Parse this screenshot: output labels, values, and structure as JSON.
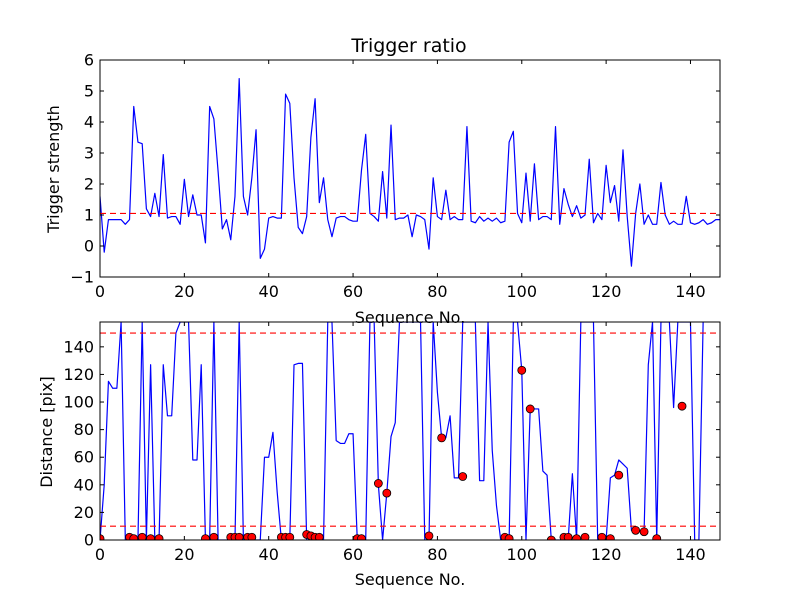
{
  "chart_data": [
    {
      "type": "line",
      "title": "Trigger ratio",
      "xlabel": "Sequence No.",
      "ylabel": "Trigger strength",
      "xlim": [
        0,
        147
      ],
      "ylim": [
        -1,
        6
      ],
      "xticks": [
        "0",
        "20",
        "40",
        "60",
        "80",
        "100",
        "120",
        "140"
      ],
      "yticks": [
        "−1",
        "0",
        "1",
        "2",
        "3",
        "4",
        "5",
        "6"
      ],
      "grid": false,
      "line_color": "#0000ff",
      "threshold_color": "#ff0000",
      "thresholds": [
        1.05
      ],
      "series": [
        {
          "values": [
            1.6,
            -0.2,
            0.85,
            0.85,
            0.85,
            0.85,
            0.7,
            0.85,
            4.5,
            3.35,
            3.3,
            1.2,
            0.95,
            1.7,
            0.95,
            2.95,
            0.9,
            0.95,
            0.95,
            0.7,
            2.15,
            0.95,
            1.65,
            1.0,
            1.0,
            0.1,
            4.5,
            4.1,
            2.4,
            0.55,
            0.85,
            0.2,
            1.6,
            5.4,
            1.6,
            1.0,
            2.2,
            3.75,
            -0.4,
            -0.1,
            0.9,
            0.95,
            0.9,
            0.9,
            4.9,
            4.6,
            2.2,
            0.6,
            0.4,
            0.95,
            3.5,
            4.75,
            1.4,
            2.2,
            0.85,
            0.3,
            0.9,
            0.95,
            0.95,
            0.85,
            0.8,
            0.8,
            2.45,
            3.6,
            1.05,
            0.95,
            0.8,
            2.4,
            0.9,
            3.9,
            0.85,
            0.9,
            0.9,
            1.0,
            0.3,
            1.0,
            0.95,
            0.85,
            -0.1,
            2.2,
            0.95,
            0.85,
            1.8,
            0.85,
            0.95,
            0.85,
            0.85,
            3.85,
            0.8,
            0.75,
            0.95,
            0.8,
            0.9,
            0.8,
            0.9,
            0.75,
            0.8,
            3.35,
            3.7,
            1.05,
            0.75,
            2.35,
            0.8,
            2.65,
            0.85,
            0.95,
            0.95,
            0.85,
            3.85,
            0.7,
            1.85,
            1.35,
            0.95,
            1.3,
            0.9,
            1.0,
            2.8,
            0.75,
            1.05,
            0.85,
            2.6,
            1.4,
            1.95,
            0.8,
            3.1,
            0.95,
            -0.65,
            1.05,
            2.0,
            0.7,
            1.0,
            0.7,
            0.7,
            2.05,
            1.0,
            0.7,
            0.8,
            0.7,
            0.7,
            1.6,
            0.75,
            0.7,
            0.75,
            0.85,
            0.7,
            0.75,
            0.85,
            0.85,
            0.75
          ]
        }
      ]
    },
    {
      "type": "line",
      "xlabel": "Sequence No.",
      "ylabel": "Distance [pix]",
      "xlim": [
        0,
        147
      ],
      "ylim": [
        0,
        158
      ],
      "xticks": [
        "0",
        "20",
        "40",
        "60",
        "80",
        "100",
        "120",
        "140"
      ],
      "yticks": [
        "0",
        "20",
        "40",
        "60",
        "80",
        "100",
        "120",
        "140"
      ],
      "grid": false,
      "line_color": "#0000ff",
      "marker_color": "#ff0000",
      "threshold_color": "#ff0000",
      "thresholds": [
        10,
        150
      ],
      "series": [
        {
          "values": [
            0,
            40,
            115,
            110,
            110,
            158,
            0,
            0,
            0,
            0,
            158,
            0,
            127,
            0,
            0,
            127,
            90,
            90,
            150,
            158,
            158,
            158,
            58,
            58,
            127,
            0,
            0,
            158,
            0,
            0,
            0,
            0,
            0,
            158,
            0,
            0,
            0,
            0,
            0,
            60,
            60,
            78,
            35,
            0,
            0,
            0,
            127,
            128,
            128,
            0,
            0,
            0,
            0,
            0,
            158,
            158,
            72,
            70,
            70,
            77,
            77,
            0,
            0,
            0,
            158,
            158,
            40,
            0,
            34,
            75,
            85,
            158,
            158,
            158,
            158,
            158,
            158,
            0,
            0,
            158,
            107,
            74,
            74,
            90,
            45,
            45,
            158,
            158,
            158,
            158,
            43,
            43,
            158,
            65,
            25,
            0,
            0,
            0,
            158,
            158,
            123,
            0,
            95,
            95,
            95,
            50,
            47,
            0,
            0,
            0,
            0,
            0,
            48,
            0,
            158,
            158,
            158,
            158,
            0,
            0,
            0,
            45,
            47,
            58,
            55,
            52,
            7,
            7,
            6,
            6,
            127,
            158,
            0,
            158,
            158,
            158,
            96,
            158,
            158,
            158,
            158,
            0,
            0,
            158
          ]
        }
      ],
      "markers": [
        {
          "x": 0,
          "y": 1
        },
        {
          "x": 7,
          "y": 2
        },
        {
          "x": 8,
          "y": 1
        },
        {
          "x": 10,
          "y": 2
        },
        {
          "x": 12,
          "y": 1
        },
        {
          "x": 14,
          "y": 1
        },
        {
          "x": 25,
          "y": 1
        },
        {
          "x": 27,
          "y": 2
        },
        {
          "x": 31,
          "y": 2
        },
        {
          "x": 32,
          "y": 2
        },
        {
          "x": 33,
          "y": 2
        },
        {
          "x": 35,
          "y": 2
        },
        {
          "x": 36,
          "y": 2
        },
        {
          "x": 43,
          "y": 2
        },
        {
          "x": 44,
          "y": 2
        },
        {
          "x": 45,
          "y": 2
        },
        {
          "x": 49,
          "y": 4
        },
        {
          "x": 50,
          "y": 3
        },
        {
          "x": 51,
          "y": 2
        },
        {
          "x": 52,
          "y": 2
        },
        {
          "x": 61,
          "y": 1
        },
        {
          "x": 62,
          "y": 1
        },
        {
          "x": 66,
          "y": 41
        },
        {
          "x": 68,
          "y": 34
        },
        {
          "x": 78,
          "y": 3
        },
        {
          "x": 81,
          "y": 74
        },
        {
          "x": 86,
          "y": 46
        },
        {
          "x": 96,
          "y": 2
        },
        {
          "x": 97,
          "y": 1
        },
        {
          "x": 100,
          "y": 123
        },
        {
          "x": 102,
          "y": 95
        },
        {
          "x": 107,
          "y": 0
        },
        {
          "x": 110,
          "y": 2
        },
        {
          "x": 111,
          "y": 2
        },
        {
          "x": 113,
          "y": 1
        },
        {
          "x": 115,
          "y": 2
        },
        {
          "x": 119,
          "y": 2
        },
        {
          "x": 121,
          "y": 1
        },
        {
          "x": 123,
          "y": 47
        },
        {
          "x": 127,
          "y": 7
        },
        {
          "x": 129,
          "y": 6
        },
        {
          "x": 132,
          "y": 1
        },
        {
          "x": 138,
          "y": 97
        }
      ]
    }
  ]
}
